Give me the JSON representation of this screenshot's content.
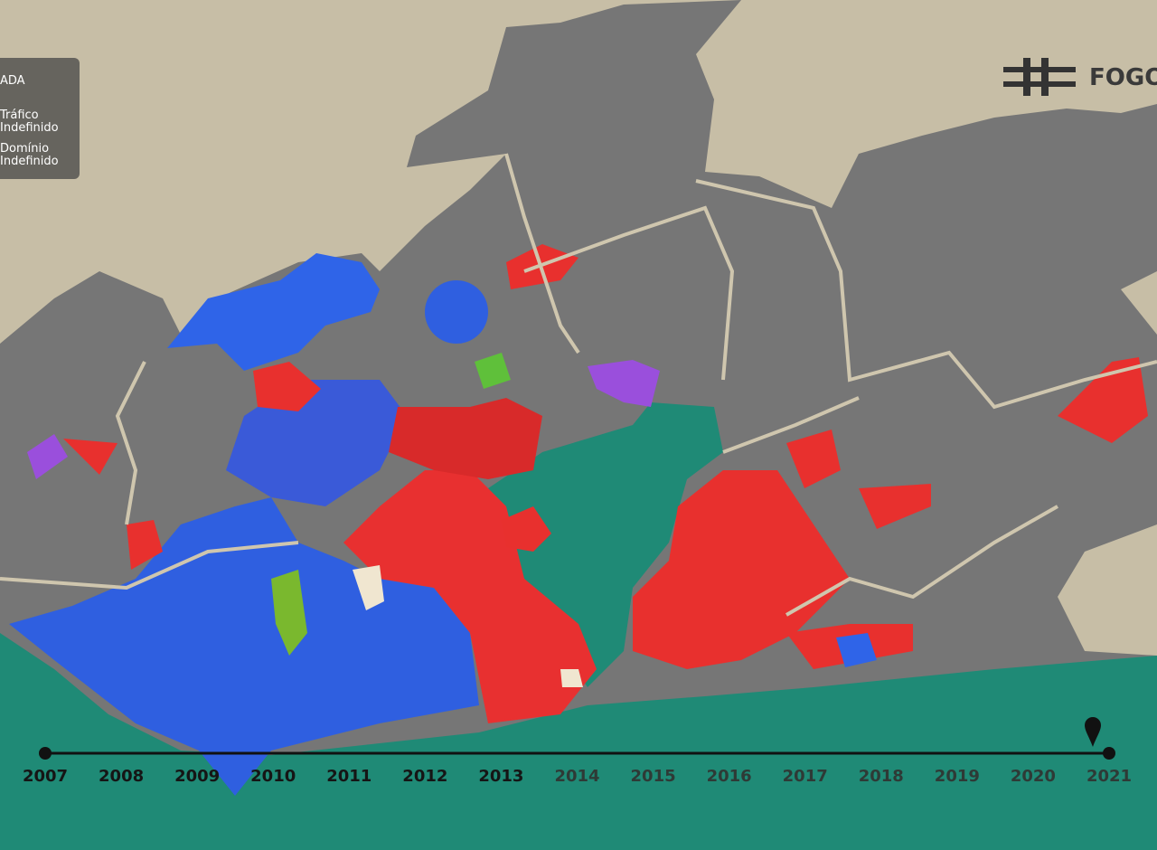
{
  "legend": {
    "items": [
      "ADA",
      "Tráfico Indefinido",
      "Domínio Indefinido"
    ]
  },
  "logo": {
    "text": "FOGOC"
  },
  "timeline": {
    "years": [
      "2007",
      "2008",
      "2009",
      "2010",
      "2011",
      "2012",
      "2013",
      "2014",
      "2015",
      "2016",
      "2017",
      "2018",
      "2019",
      "2020",
      "2021"
    ],
    "marker_year": "2021"
  }
}
